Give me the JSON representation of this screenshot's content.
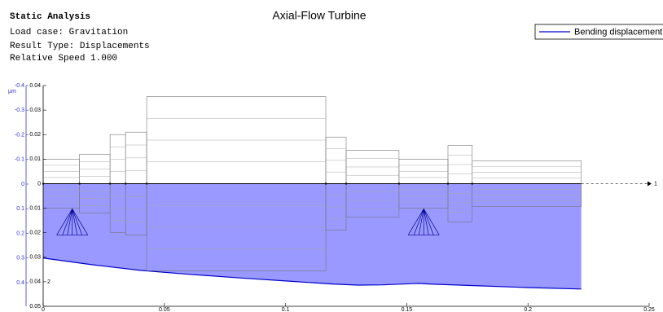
{
  "chart_data": {
    "type": "line",
    "title": "Axial-Flow Turbine",
    "info_lines": [
      "Static Analysis",
      "Load case:   Gravitation",
      "Result Type: Displacements",
      "Relative Speed 1.000"
    ],
    "y2_unit": "µm",
    "axis_labels": [
      "1",
      "2"
    ],
    "x": [
      0,
      0.02,
      0.04,
      0.06,
      0.08,
      0.1,
      0.12,
      0.13,
      0.14,
      0.155,
      0.16,
      0.18,
      0.2,
      0.222
    ],
    "series": [
      {
        "name": "Bending displacement",
        "color": "#0000cc",
        "fill": "#9999ff",
        "axis": "y2",
        "values": [
          0.3,
          0.327,
          0.35,
          0.366,
          0.38,
          0.393,
          0.406,
          0.41,
          0.409,
          0.403,
          0.406,
          0.413,
          0.42,
          0.426
        ]
      }
    ],
    "xlim": [
      0,
      0.25
    ],
    "xticks": [
      0,
      0.05,
      0.1,
      0.15,
      0.2,
      0.25
    ],
    "ylim": [
      0.04,
      -0.05
    ],
    "yticks": [
      0.04,
      0.03,
      0.02,
      0.01,
      0,
      {
        "value": -0.01,
        "label": "0.01"
      },
      {
        "value": -0.02,
        "label": "0.02"
      },
      {
        "value": -0.03,
        "label": "0.03"
      },
      {
        "value": -0.04,
        "label": "0.04"
      },
      {
        "value": -0.05,
        "label": "0.05"
      }
    ],
    "y2lim": [
      -0.4,
      0.496
    ],
    "y2ticks": [
      -0.4,
      -0.3,
      -0.2,
      -0.1,
      0,
      0.1,
      0.2,
      0.3,
      0.4
    ],
    "rotor_sections": [
      {
        "start": 0,
        "end": 0.015,
        "radius": 0.01
      },
      {
        "start": 0.015,
        "end": 0.0276,
        "radius": 0.012
      },
      {
        "start": 0.0276,
        "end": 0.034,
        "radius": 0.02
      },
      {
        "start": 0.034,
        "end": 0.0427,
        "radius": 0.021
      },
      {
        "start": 0.0427,
        "end": 0.1166,
        "radius": 0.0355
      },
      {
        "start": 0.1166,
        "end": 0.125,
        "radius": 0.019
      },
      {
        "start": 0.125,
        "end": 0.1468,
        "radius": 0.0136
      },
      {
        "start": 0.1468,
        "end": 0.167,
        "radius": 0.01
      },
      {
        "start": 0.167,
        "end": 0.177,
        "radius": 0.0156
      },
      {
        "start": 0.177,
        "end": 0.222,
        "radius": 0.0093
      }
    ],
    "bearings": [
      0.012,
      0.157
    ],
    "legend": "upper right"
  }
}
